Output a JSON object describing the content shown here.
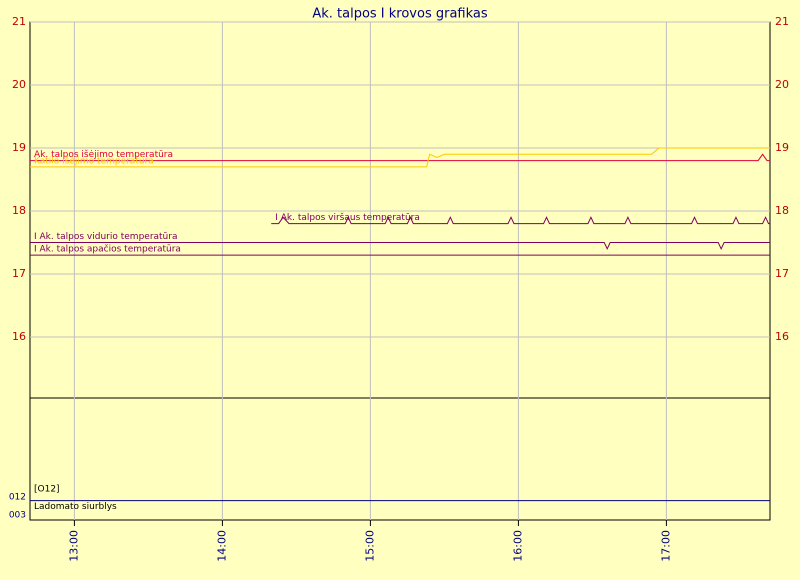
{
  "chart_data": [
    {
      "type": "line",
      "title": "Ak. talpos I krovos grafikas",
      "xlim": [
        12.7,
        17.7
      ],
      "xticks": [
        {
          "value": 13,
          "label": "13:00"
        },
        {
          "value": 14,
          "label": "14:00"
        },
        {
          "value": 15,
          "label": "15:00"
        },
        {
          "value": 16,
          "label": "16:00"
        },
        {
          "value": 17,
          "label": "17:00"
        }
      ],
      "ylim": [
        15,
        21
      ],
      "yticks": [
        16,
        17,
        18,
        19,
        20,
        21
      ],
      "grid": true,
      "series": [
        {
          "name": "Ak. talpos išėjimo temperatūra",
          "color": "#e0003c",
          "x": [
            12.7,
            17.62,
            17.65,
            17.68,
            17.7
          ],
          "values": [
            18.8,
            18.8,
            18.9,
            18.8,
            18.8
          ]
        },
        {
          "name": "Katilo išėjimo temperatūra",
          "color": "#ffc800",
          "x": [
            12.7,
            14.15,
            15.38,
            15.4,
            15.45,
            15.5,
            15.9,
            16.9,
            16.95,
            17.7
          ],
          "values": [
            18.7,
            18.7,
            18.7,
            18.9,
            18.85,
            18.9,
            18.9,
            18.9,
            19.0,
            19.0
          ]
        },
        {
          "name": "I Ak. talpos viršaus temperatūra",
          "color": "#800060",
          "x": [
            14.33,
            14.38,
            14.41,
            14.45,
            14.83,
            14.85,
            14.87,
            15.1,
            15.12,
            15.14,
            15.25,
            15.27,
            15.29,
            15.52,
            15.54,
            15.56,
            15.93,
            15.95,
            15.97,
            16.17,
            16.19,
            16.21,
            16.47,
            16.49,
            16.51,
            16.72,
            16.74,
            16.76,
            17.17,
            17.19,
            17.21,
            17.45,
            17.47,
            17.49,
            17.65,
            17.67,
            17.69,
            17.7
          ],
          "values": [
            17.8,
            17.8,
            17.9,
            17.8,
            17.8,
            17.9,
            17.8,
            17.8,
            17.9,
            17.8,
            17.8,
            17.9,
            17.8,
            17.8,
            17.9,
            17.8,
            17.8,
            17.9,
            17.8,
            17.8,
            17.9,
            17.8,
            17.8,
            17.9,
            17.8,
            17.8,
            17.9,
            17.8,
            17.8,
            17.9,
            17.8,
            17.8,
            17.9,
            17.8,
            17.8,
            17.9,
            17.8,
            17.8
          ]
        },
        {
          "name": "I Ak. talpos vidurio temperatūra",
          "color": "#800060",
          "x": [
            12.7,
            16.58,
            16.6,
            16.62,
            17.35,
            17.37,
            17.39,
            17.7
          ],
          "values": [
            17.5,
            17.5,
            17.4,
            17.5,
            17.5,
            17.4,
            17.5,
            17.5
          ]
        },
        {
          "name": "I Ak. talpos apačios temperatūra",
          "color": "#800060",
          "x": [
            12.7,
            17.7
          ],
          "values": [
            17.3,
            17.3
          ]
        }
      ]
    },
    {
      "type": "step",
      "title": "[O12]",
      "xlim": [
        12.7,
        17.7
      ],
      "ylim": [
        0,
        1
      ],
      "yticks": [
        {
          "value": 1,
          "label": "012"
        },
        {
          "value": 0,
          "label": "003"
        }
      ],
      "series": [
        {
          "name": "Ladomato siurblys",
          "color": "#000080",
          "x": [
            12.7,
            17.7
          ],
          "values": [
            0.8,
            0.8
          ]
        }
      ]
    }
  ]
}
